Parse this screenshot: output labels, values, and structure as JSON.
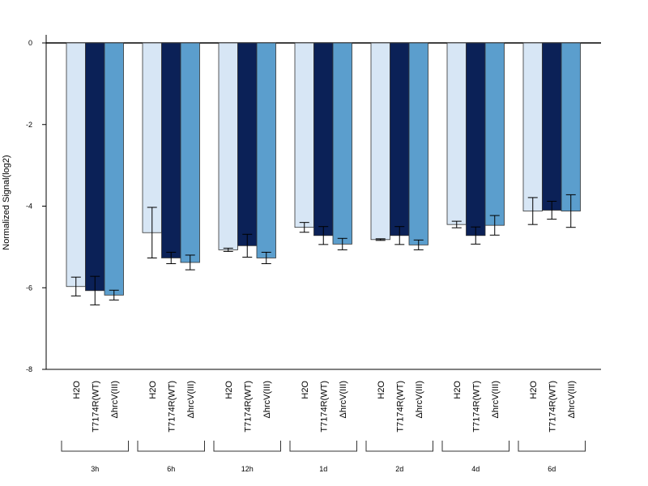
{
  "chart_data": {
    "type": "bar",
    "ylabel": "Normalized Signal(log2)",
    "ylim": [
      -8,
      0
    ],
    "yticks": [
      0,
      -2,
      -4,
      -6,
      -8
    ],
    "groups": [
      "3h",
      "6h",
      "12h",
      "1d",
      "2d",
      "4d",
      "6d"
    ],
    "conditions": [
      "H2O",
      "T7174R(WT)",
      "ΔhrcV(III)"
    ],
    "colors": [
      "#d7e6f5",
      "#0b2157",
      "#5b9ecd"
    ],
    "values": [
      [
        -5.97,
        -6.07,
        -6.18
      ],
      [
        -4.65,
        -5.27,
        -5.38
      ],
      [
        -5.07,
        -4.97,
        -5.27
      ],
      [
        -4.52,
        -4.72,
        -4.93
      ],
      [
        -4.82,
        -4.72,
        -4.95
      ],
      [
        -4.45,
        -4.72,
        -4.47
      ],
      [
        -4.12,
        -4.1,
        -4.12
      ]
    ],
    "errors": [
      [
        0.23,
        0.35,
        0.12
      ],
      [
        0.62,
        0.14,
        0.18
      ],
      [
        0.04,
        0.28,
        0.14
      ],
      [
        0.12,
        0.22,
        0.14
      ],
      [
        0.02,
        0.22,
        0.12
      ],
      [
        0.08,
        0.21,
        0.24
      ],
      [
        0.33,
        0.22,
        0.4
      ]
    ]
  }
}
